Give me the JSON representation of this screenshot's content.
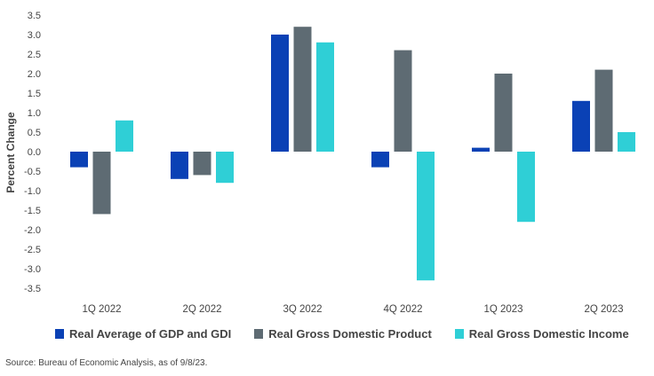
{
  "chart_data": {
    "type": "bar",
    "title": "",
    "xlabel": "",
    "ylabel": "Percent Change",
    "ylim": [
      -3.5,
      3.5
    ],
    "yticks": [
      3.5,
      3.0,
      2.5,
      2.0,
      1.5,
      1.0,
      0.5,
      0.0,
      -0.5,
      -1.0,
      -1.5,
      -2.0,
      -2.5,
      -3.0,
      -3.5
    ],
    "ytick_labels": [
      "3.5",
      "3.0",
      "2.5",
      "2.0",
      "1.5",
      "1.0",
      "0.5",
      "0.0",
      "-0.5",
      "-1.0",
      "-1.5",
      "-2.0",
      "-2.5",
      "-3.0",
      "-3.5"
    ],
    "categories": [
      "1Q 2022",
      "2Q 2022",
      "3Q 2022",
      "4Q 2022",
      "1Q 2023",
      "2Q 2023"
    ],
    "series": [
      {
        "name": "Real Average of GDP and GDI",
        "color": "#0a41b5",
        "values": [
          -0.4,
          -0.7,
          3.0,
          -0.4,
          0.1,
          1.3
        ]
      },
      {
        "name": "Real Gross Domestic Product",
        "color": "#5e6b73",
        "values": [
          -1.6,
          -0.6,
          3.2,
          2.6,
          2.0,
          2.1
        ]
      },
      {
        "name": "Real Gross Domestic Income",
        "color": "#2fcfd6",
        "values": [
          0.8,
          -0.8,
          2.8,
          -3.3,
          -1.8,
          0.5
        ]
      }
    ],
    "grid": false,
    "legend_position": "bottom"
  },
  "source": "Source: Bureau of Economic Analysis, as of 9/8/23."
}
